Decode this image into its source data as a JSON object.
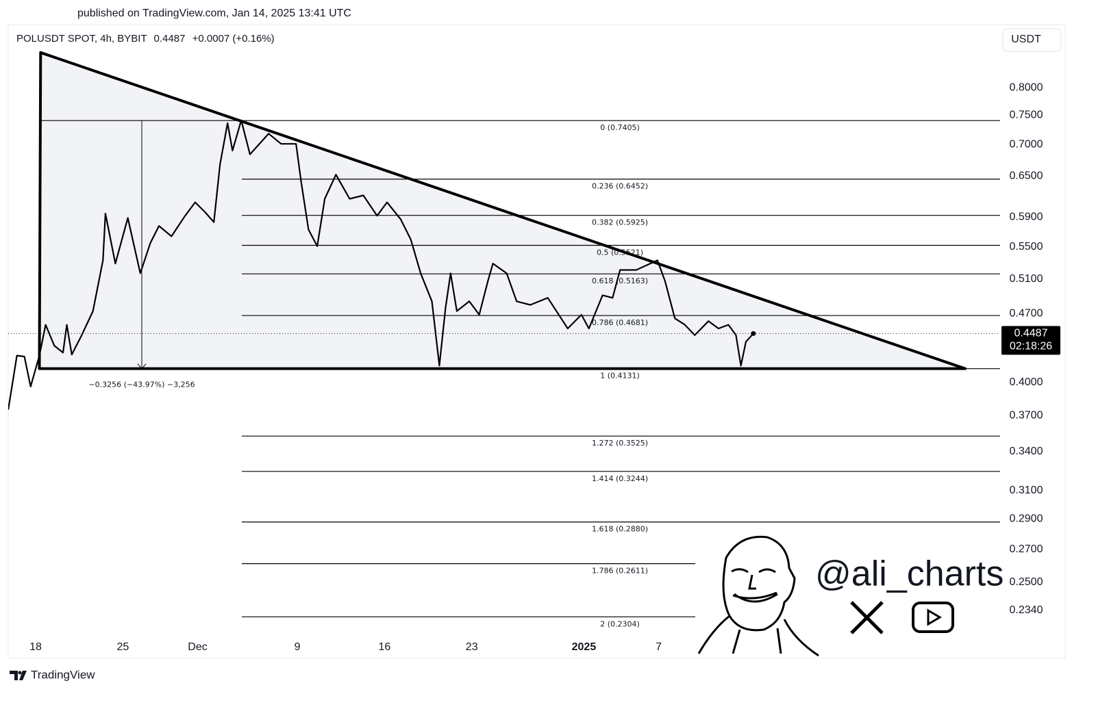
{
  "header": {
    "published": "published on TradingView.com, Jan 14, 2025 13:41 UTC",
    "brand": "TradingView"
  },
  "chart_data": {
    "type": "line",
    "title": "POLUSDT SPOT, 4h, BYBIT",
    "last_price": 0.4487,
    "subtitle": "+0.0007 (+0.16%)",
    "currency": "USDT",
    "countdown": "02:18:26",
    "color": "#000000",
    "log_scale": true,
    "x": [
      -2.2,
      -1.5,
      -0.9,
      -0.4,
      0.3,
      0.8,
      1.5,
      2.2,
      2.5,
      2.9,
      3.7,
      4.6,
      5.4,
      5.6,
      6.4,
      7.4,
      8.4,
      9.2,
      9.9,
      10.9,
      12.0,
      12.8,
      13.6,
      14.3,
      14.8,
      15.4,
      15.8,
      16.5,
      17.2,
      18.7,
      19.7,
      20.9,
      21.3,
      21.9,
      22.6,
      23.2,
      24.1,
      25.2,
      26.3,
      27.4,
      28.2,
      29.3,
      30.1,
      30.9,
      31.8,
      32.4,
      32.9,
      33.3,
      33.8,
      34.8,
      35.6,
      36.3,
      36.7,
      37.8,
      38.6,
      39.7,
      41.1,
      42.7,
      43.8,
      44.4,
      45.5,
      46.3,
      46.9,
      48.2,
      49.9,
      50.5,
      51.3,
      52.1,
      52.9,
      54.0,
      54.8,
      55.6,
      56.2,
      56.6,
      57.0,
      57.6
    ],
    "values": [
      0.375,
      0.426,
      0.425,
      0.396,
      0.426,
      0.458,
      0.436,
      0.429,
      0.458,
      0.427,
      0.447,
      0.473,
      0.533,
      0.595,
      0.529,
      0.589,
      0.517,
      0.555,
      0.578,
      0.564,
      0.592,
      0.611,
      0.597,
      0.583,
      0.668,
      0.736,
      0.69,
      0.741,
      0.684,
      0.718,
      0.701,
      0.701,
      0.642,
      0.573,
      0.551,
      0.616,
      0.652,
      0.616,
      0.621,
      0.592,
      0.611,
      0.587,
      0.56,
      0.517,
      0.484,
      0.416,
      0.477,
      0.517,
      0.473,
      0.484,
      0.469,
      0.508,
      0.529,
      0.517,
      0.484,
      0.48,
      0.488,
      0.454,
      0.469,
      0.454,
      0.491,
      0.488,
      0.521,
      0.521,
      0.533,
      0.508,
      0.465,
      0.458,
      0.447,
      0.462,
      0.454,
      0.458,
      0.447,
      0.416,
      0.44,
      0.4487
    ],
    "xlim": [
      -2.2,
      77.4
    ],
    "ylim": [
      0.22,
      0.928
    ],
    "xticks": [
      {
        "value": 0,
        "label": "18"
      },
      {
        "value": 7,
        "label": "25"
      },
      {
        "value": 13,
        "label": "Dec"
      },
      {
        "value": 21,
        "label": "9"
      },
      {
        "value": 28,
        "label": "16"
      },
      {
        "value": 35,
        "label": "23"
      },
      {
        "value": 44,
        "label": "2025"
      },
      {
        "value": 50,
        "label": "7"
      }
    ],
    "yticks": [
      {
        "value": 0.8,
        "label": "0.8000"
      },
      {
        "value": 0.75,
        "label": "0.7500"
      },
      {
        "value": 0.7,
        "label": "0.7000"
      },
      {
        "value": 0.65,
        "label": "0.6500"
      },
      {
        "value": 0.59,
        "label": "0.5900"
      },
      {
        "value": 0.55,
        "label": "0.5500"
      },
      {
        "value": 0.51,
        "label": "0.5100"
      },
      {
        "value": 0.47,
        "label": "0.4700"
      },
      {
        "value": 0.4,
        "label": "0.4000"
      },
      {
        "value": 0.37,
        "label": "0.3700"
      },
      {
        "value": 0.34,
        "label": "0.3400"
      },
      {
        "value": 0.31,
        "label": "0.3100"
      },
      {
        "value": 0.29,
        "label": "0.2900"
      },
      {
        "value": 0.27,
        "label": "0.2700"
      },
      {
        "value": 0.25,
        "label": "0.2500"
      },
      {
        "value": 0.234,
        "label": "0.2340"
      }
    ],
    "fib_levels": [
      {
        "value": 0.7405,
        "label": "0 (0.7405)"
      },
      {
        "value": 0.6452,
        "label": "0.236 (0.6452)"
      },
      {
        "value": 0.5925,
        "label": "0.382 (0.5925)"
      },
      {
        "value": 0.5521,
        "label": "0.5 (0.5521)"
      },
      {
        "value": 0.5163,
        "label": "0.618 (0.5163)"
      },
      {
        "value": 0.4681,
        "label": "0.786 (0.4681)"
      },
      {
        "value": 0.4131,
        "label": "1 (0.4131)"
      },
      {
        "value": 0.3525,
        "label": "1.272 (0.3525)"
      },
      {
        "value": 0.3244,
        "label": "1.414 (0.3244)"
      },
      {
        "value": 0.288,
        "label": "1.618 (0.2880)"
      },
      {
        "value": 0.2611,
        "label": "1.786 (0.2611)"
      },
      {
        "value": 0.2304,
        "label": "2 (0.2304)"
      }
    ],
    "measure_label": "−0.3256 (−43.97%) −3,256",
    "triangle": {
      "x": [
        0.4,
        74.6,
        0.3
      ],
      "y": [
        0.869,
        0.4131,
        0.4131
      ]
    }
  },
  "watermark": {
    "handle": "@ali_charts"
  }
}
